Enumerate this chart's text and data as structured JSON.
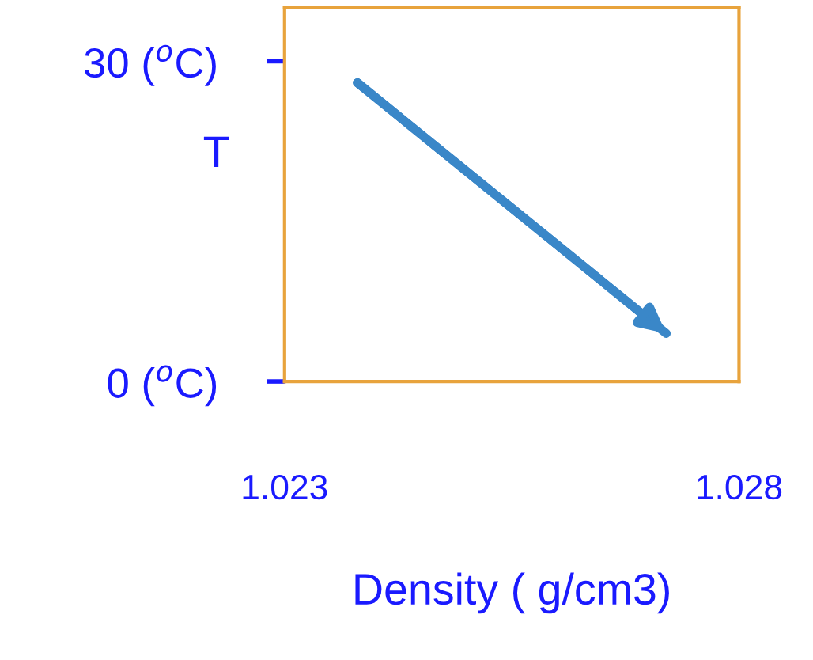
{
  "chart_data": {
    "type": "line",
    "xlabel": "Density ( g/cm3)",
    "ylabel": "T",
    "series": [
      {
        "color": "#3a87c8",
        "x": [
          1.0238,
          1.0272
        ],
        "values": [
          28,
          4.5
        ]
      }
    ],
    "xlim": [
      1.023,
      1.028
    ],
    "xticks": [
      1.023,
      1.028
    ],
    "ylim": [
      0,
      35
    ],
    "yticks": [
      {
        "value": 0,
        "label": "0 ($^{o}$C)"
      },
      {
        "value": 30,
        "label": "30 ($^{o}$C)"
      }
    ],
    "grid": false,
    "legend": false
  }
}
